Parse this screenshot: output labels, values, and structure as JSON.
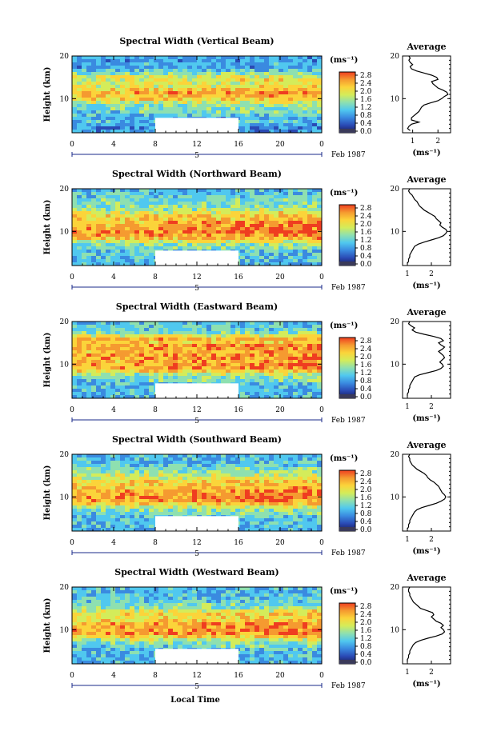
{
  "figure": {
    "xlabel": "Local Time",
    "colorbar_unit": "(ms⁻¹)",
    "profile_title": "Average",
    "profile_xlabel": "(ms⁻¹)"
  },
  "chart_data": [
    {
      "type": "heatmap",
      "title": "Spectral Width (Vertical Beam)",
      "ylabel": "Height (km)",
      "x_ticks": [
        "0",
        "4",
        "8",
        "12",
        "16",
        "20",
        "0"
      ],
      "date_marker": "5",
      "date_label": "Feb 1987",
      "y_ticks": [
        "20",
        "10"
      ],
      "xlim": [
        0,
        24
      ],
      "ylim": [
        2,
        20
      ],
      "data_gap": {
        "x": [
          8,
          16
        ],
        "y": [
          2,
          5.5
        ]
      },
      "colorbar": {
        "ticks": [
          "2.8",
          "2.4",
          "2.0",
          "1.6",
          "1.2",
          "0.8",
          "0.4",
          "0.0"
        ],
        "range": [
          0.0,
          3.0
        ]
      },
      "colors": [
        "#1a1a5a",
        "#2a4ab5",
        "#3a8ae0",
        "#50c8ef",
        "#8ee0b0",
        "#d4ec5a",
        "#fbd43a",
        "#f59a30",
        "#ef3d20"
      ],
      "profile": {
        "title": "Average",
        "xlabel": "(ms⁻¹)",
        "x_ticks": [
          "1",
          "2"
        ],
        "xlim": [
          0.6,
          2.5
        ],
        "y_ticks": [
          "20",
          "10"
        ],
        "ylim": [
          2,
          20
        ],
        "height": [
          2.5,
          3,
          3.5,
          4,
          4.5,
          5,
          5.5,
          6,
          6.5,
          7,
          7.5,
          8,
          8.5,
          9,
          9.5,
          10,
          10.5,
          11,
          11.5,
          12,
          12.5,
          13,
          13.5,
          14,
          14.5,
          15,
          15.5,
          16,
          16.5,
          17,
          17.5,
          18,
          18.5,
          19,
          19.5,
          20
        ],
        "width": [
          0.9,
          0.8,
          0.85,
          0.95,
          1.25,
          0.95,
          0.95,
          1.05,
          1.15,
          1.25,
          1.3,
          1.35,
          1.45,
          1.7,
          2.0,
          2.15,
          2.25,
          2.4,
          2.35,
          2.2,
          2.0,
          1.9,
          1.8,
          1.75,
          2.0,
          1.95,
          1.75,
          1.45,
          1.15,
          0.95,
          0.9,
          1.0,
          0.9,
          0.85,
          0.9,
          0.85
        ]
      }
    },
    {
      "type": "heatmap",
      "title": "Spectral Width (Northward Beam)",
      "ylabel": "Height (km)",
      "x_ticks": [
        "0",
        "4",
        "8",
        "12",
        "16",
        "20",
        "0"
      ],
      "date_marker": "5",
      "date_label": "Feb 1987",
      "y_ticks": [
        "20",
        "10"
      ],
      "xlim": [
        0,
        24
      ],
      "ylim": [
        2,
        20
      ],
      "data_gap": {
        "x": [
          8,
          16
        ],
        "y": [
          2,
          5.5
        ]
      },
      "colorbar": {
        "ticks": [
          "2.8",
          "2.4",
          "2.0",
          "1.6",
          "1.2",
          "0.8",
          "0.4",
          "0.0"
        ],
        "range": [
          0.0,
          3.0
        ]
      },
      "colors": [
        "#1a1a5a",
        "#2a4ab5",
        "#3a8ae0",
        "#50c8ef",
        "#8ee0b0",
        "#d4ec5a",
        "#fbd43a",
        "#f59a30",
        "#ef3d20"
      ],
      "profile": {
        "title": "Average",
        "xlabel": "(ms⁻¹)",
        "x_ticks": [
          "1",
          "2"
        ],
        "xlim": [
          0.8,
          2.8
        ],
        "y_ticks": [
          "20",
          "10"
        ],
        "ylim": [
          2,
          20
        ],
        "height": [
          2.5,
          3,
          3.5,
          4,
          4.5,
          5,
          5.5,
          6,
          6.5,
          7,
          7.5,
          8,
          8.5,
          9,
          9.5,
          10,
          10.5,
          11,
          11.5,
          12,
          12.5,
          13,
          13.5,
          14,
          14.5,
          15,
          15.5,
          16,
          16.5,
          17,
          17.5,
          18,
          18.5,
          19,
          19.5,
          20
        ],
        "width": [
          1.0,
          1.05,
          1.05,
          1.1,
          1.1,
          1.15,
          1.2,
          1.25,
          1.3,
          1.45,
          1.7,
          2.0,
          2.3,
          2.5,
          2.6,
          2.65,
          2.6,
          2.45,
          2.35,
          2.4,
          2.3,
          2.2,
          2.15,
          2.0,
          1.85,
          1.7,
          1.6,
          1.5,
          1.45,
          1.4,
          1.3,
          1.25,
          1.2,
          1.1,
          1.05,
          1.1
        ]
      }
    },
    {
      "type": "heatmap",
      "title": "Spectral Width (Eastward Beam)",
      "ylabel": "Height (km)",
      "x_ticks": [
        "0",
        "4",
        "8",
        "12",
        "16",
        "20",
        "0"
      ],
      "date_marker": "5",
      "date_label": "Feb 1987",
      "y_ticks": [
        "20",
        "10"
      ],
      "xlim": [
        0,
        24
      ],
      "ylim": [
        2,
        20
      ],
      "data_gap": {
        "x": [
          8,
          16
        ],
        "y": [
          2,
          5.5
        ]
      },
      "colorbar": {
        "ticks": [
          "2.8",
          "2.4",
          "2.0",
          "1.6",
          "1.2",
          "0.8",
          "0.4",
          "0.0"
        ],
        "range": [
          0.0,
          3.0
        ]
      },
      "colors": [
        "#1a1a5a",
        "#2a4ab5",
        "#3a8ae0",
        "#50c8ef",
        "#8ee0b0",
        "#d4ec5a",
        "#fbd43a",
        "#f59a30",
        "#ef3d20"
      ],
      "profile": {
        "title": "Average",
        "xlabel": "(ms⁻¹)",
        "x_ticks": [
          "1",
          "2"
        ],
        "xlim": [
          0.8,
          2.8
        ],
        "y_ticks": [
          "20",
          "10"
        ],
        "ylim": [
          2,
          20
        ],
        "height": [
          2.5,
          3,
          3.5,
          4,
          4.5,
          5,
          5.5,
          6,
          6.5,
          7,
          7.5,
          8,
          8.5,
          9,
          9.5,
          10,
          10.5,
          11,
          11.5,
          12,
          12.5,
          13,
          13.5,
          14,
          14.5,
          15,
          15.5,
          16,
          16.5,
          17,
          17.5,
          18,
          18.5,
          19,
          19.5,
          20
        ],
        "width": [
          1.0,
          1.0,
          1.05,
          1.05,
          1.1,
          1.1,
          1.15,
          1.2,
          1.25,
          1.3,
          1.5,
          1.85,
          2.2,
          2.4,
          2.5,
          2.45,
          2.35,
          2.45,
          2.55,
          2.5,
          2.4,
          2.3,
          2.45,
          2.55,
          2.4,
          2.3,
          2.5,
          2.4,
          2.1,
          1.7,
          1.35,
          1.2,
          1.3,
          1.15,
          1.05,
          1.1
        ]
      }
    },
    {
      "type": "heatmap",
      "title": "Spectral Width (Southward Beam)",
      "ylabel": "Height (km)",
      "x_ticks": [
        "0",
        "4",
        "8",
        "12",
        "16",
        "20",
        "0"
      ],
      "date_marker": "5",
      "date_label": "Feb 1987",
      "y_ticks": [
        "20",
        "10"
      ],
      "xlim": [
        0,
        24
      ],
      "ylim": [
        2,
        20
      ],
      "data_gap": {
        "x": [
          8,
          16
        ],
        "y": [
          2,
          5.5
        ]
      },
      "colorbar": {
        "ticks": [
          "2.8",
          "2.4",
          "2.0",
          "1.6",
          "1.2",
          "0.8",
          "0.4",
          "0.0"
        ],
        "range": [
          0.0,
          3.0
        ]
      },
      "colors": [
        "#1a1a5a",
        "#2a4ab5",
        "#3a8ae0",
        "#50c8ef",
        "#8ee0b0",
        "#d4ec5a",
        "#fbd43a",
        "#f59a30",
        "#ef3d20"
      ],
      "profile": {
        "title": "Average",
        "xlabel": "(ms⁻¹)",
        "x_ticks": [
          "1",
          "2"
        ],
        "xlim": [
          0.8,
          2.8
        ],
        "y_ticks": [
          "20",
          "10"
        ],
        "ylim": [
          2,
          20
        ],
        "height": [
          2.5,
          3,
          3.5,
          4,
          4.5,
          5,
          5.5,
          6,
          6.5,
          7,
          7.5,
          8,
          8.5,
          9,
          9.5,
          10,
          10.5,
          11,
          11.5,
          12,
          12.5,
          13,
          13.5,
          14,
          14.5,
          15,
          15.5,
          16,
          16.5,
          17,
          17.5,
          18,
          18.5,
          19,
          19.5,
          20
        ],
        "width": [
          1.0,
          1.05,
          1.05,
          1.1,
          1.1,
          1.15,
          1.2,
          1.25,
          1.3,
          1.4,
          1.6,
          1.9,
          2.2,
          2.4,
          2.55,
          2.6,
          2.55,
          2.45,
          2.4,
          2.35,
          2.3,
          2.2,
          2.1,
          1.95,
          1.85,
          1.8,
          1.7,
          1.55,
          1.4,
          1.3,
          1.2,
          1.15,
          1.1,
          1.1,
          1.05,
          1.1
        ]
      }
    },
    {
      "type": "heatmap",
      "title": "Spectral Width (Westward Beam)",
      "ylabel": "Height (km)",
      "x_ticks": [
        "0",
        "4",
        "8",
        "12",
        "16",
        "20",
        "0"
      ],
      "date_marker": "5",
      "date_label": "Feb 1987",
      "y_ticks": [
        "20",
        "10"
      ],
      "xlim": [
        0,
        24
      ],
      "ylim": [
        2,
        20
      ],
      "data_gap": {
        "x": [
          8,
          16
        ],
        "y": [
          2,
          5.5
        ]
      },
      "colorbar": {
        "ticks": [
          "2.8",
          "2.4",
          "2.0",
          "1.6",
          "1.2",
          "0.8",
          "0.4",
          "0.0"
        ],
        "range": [
          0.0,
          3.0
        ]
      },
      "colors": [
        "#1a1a5a",
        "#2a4ab5",
        "#3a8ae0",
        "#50c8ef",
        "#8ee0b0",
        "#d4ec5a",
        "#fbd43a",
        "#f59a30",
        "#ef3d20"
      ],
      "profile": {
        "title": "Average",
        "xlabel": "(ms⁻¹)",
        "x_ticks": [
          "1",
          "2"
        ],
        "xlim": [
          0.8,
          2.8
        ],
        "y_ticks": [
          "20",
          "10"
        ],
        "ylim": [
          2,
          20
        ],
        "height": [
          2.5,
          3,
          3.5,
          4,
          4.5,
          5,
          5.5,
          6,
          6.5,
          7,
          7.5,
          8,
          8.5,
          9,
          9.5,
          10,
          10.5,
          11,
          11.5,
          12,
          12.5,
          13,
          13.5,
          14,
          14.5,
          15,
          15.5,
          16,
          16.5,
          17,
          17.5,
          18,
          18.5,
          19,
          19.5,
          20
        ],
        "width": [
          1.0,
          1.0,
          1.05,
          1.05,
          1.1,
          1.1,
          1.15,
          1.2,
          1.25,
          1.35,
          1.55,
          1.85,
          2.2,
          2.45,
          2.55,
          2.5,
          2.4,
          2.5,
          2.4,
          2.2,
          2.1,
          2.0,
          2.1,
          2.05,
          1.8,
          1.55,
          1.45,
          1.35,
          1.25,
          1.2,
          1.15,
          1.1,
          1.1,
          1.05,
          1.05,
          1.1
        ]
      }
    }
  ]
}
